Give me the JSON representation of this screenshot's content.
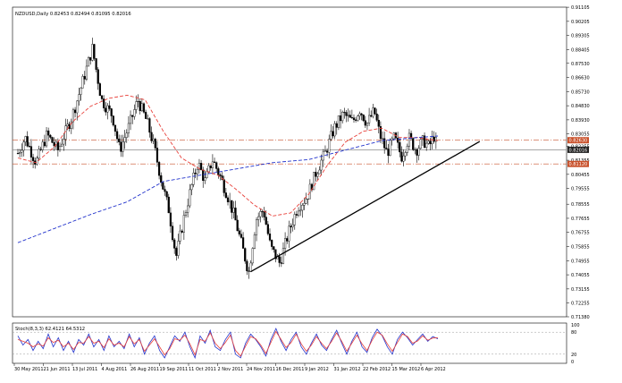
{
  "chart_header": {
    "title": "NZDUSD,Daily  0.82453 0.82494 0.81095 0.82016"
  },
  "chart_data": [
    {
      "type": "candlestick",
      "symbol": "NZDUSD",
      "timeframe": "Daily",
      "ohlc_header": {
        "open": 0.82453,
        "high": 0.82494,
        "low": 0.81095,
        "close": 0.82016
      },
      "ylim": [
        0.7138,
        0.9111
      ],
      "y_ticks": [
        0.91105,
        0.90205,
        0.89305,
        0.88405,
        0.8753,
        0.8663,
        0.8573,
        0.8483,
        0.8393,
        0.83055,
        0.82255,
        0.81355,
        0.80455,
        0.79555,
        0.78555,
        0.77655,
        0.76755,
        0.75855,
        0.74955,
        0.74055,
        0.73155,
        0.72255,
        0.7138
      ],
      "x_ticks": [
        "30 May 2011",
        "21 Jun 2011",
        "13 Jul 2011",
        "4 Aug 2011",
        "26 Aug 2011",
        "19 Sep 2011",
        "11 Oct 2011",
        "2 Nov 2011",
        "24 Nov 2011",
        "16 Dec 2011",
        "9 Jan 2012",
        "31 Jan 2012",
        "22 Feb 2012",
        "15 Mar 2012",
        "6 Apr 2012"
      ],
      "price_path": [
        [
          0,
          0.818
        ],
        [
          8,
          0.828
        ],
        [
          20,
          0.812
        ],
        [
          32,
          0.83
        ],
        [
          44,
          0.82
        ],
        [
          60,
          0.842
        ],
        [
          72,
          0.865
        ],
        [
          82,
          0.885
        ],
        [
          92,
          0.852
        ],
        [
          104,
          0.842
        ],
        [
          112,
          0.82
        ],
        [
          122,
          0.835
        ],
        [
          132,
          0.852
        ],
        [
          142,
          0.838
        ],
        [
          150,
          0.822
        ],
        [
          158,
          0.8
        ],
        [
          166,
          0.782
        ],
        [
          174,
          0.752
        ],
        [
          182,
          0.775
        ],
        [
          190,
          0.795
        ],
        [
          198,
          0.812
        ],
        [
          206,
          0.8
        ],
        [
          214,
          0.814
        ],
        [
          222,
          0.804
        ],
        [
          230,
          0.792
        ],
        [
          238,
          0.778
        ],
        [
          246,
          0.76
        ],
        [
          254,
          0.742
        ],
        [
          262,
          0.776
        ],
        [
          270,
          0.782
        ],
        [
          278,
          0.758
        ],
        [
          288,
          0.748
        ],
        [
          298,
          0.768
        ],
        [
          308,
          0.784
        ],
        [
          318,
          0.79
        ],
        [
          328,
          0.806
        ],
        [
          338,
          0.818
        ],
        [
          348,
          0.834
        ],
        [
          358,
          0.843
        ],
        [
          368,
          0.838
        ],
        [
          376,
          0.846
        ],
        [
          384,
          0.837
        ],
        [
          392,
          0.845
        ],
        [
          398,
          0.83
        ],
        [
          406,
          0.818
        ],
        [
          414,
          0.828
        ],
        [
          422,
          0.816
        ],
        [
          430,
          0.828
        ],
        [
          438,
          0.82
        ],
        [
          446,
          0.826
        ],
        [
          452,
          0.822
        ],
        [
          458,
          0.829
        ],
        [
          462,
          0.82
        ]
      ],
      "moving_averages": [
        {
          "color": "#e8403a",
          "style": "dashed",
          "values": [
            [
              0,
              0.815
            ],
            [
              20,
              0.812
            ],
            [
              40,
              0.822
            ],
            [
              60,
              0.838
            ],
            [
              80,
              0.848
            ],
            [
              100,
              0.853
            ],
            [
              120,
              0.855
            ],
            [
              140,
              0.852
            ],
            [
              160,
              0.832
            ],
            [
              180,
              0.815
            ],
            [
              200,
              0.808
            ],
            [
              220,
              0.804
            ],
            [
              240,
              0.795
            ],
            [
              260,
              0.785
            ],
            [
              280,
              0.778
            ],
            [
              300,
              0.78
            ],
            [
              320,
              0.792
            ],
            [
              340,
              0.81
            ],
            [
              360,
              0.825
            ],
            [
              380,
              0.832
            ],
            [
              400,
              0.834
            ],
            [
              420,
              0.828
            ],
            [
              440,
              0.828
            ],
            [
              462,
              0.826
            ]
          ]
        },
        {
          "color": "#2233cc",
          "style": "dashed",
          "values": [
            [
              0,
              0.761
            ],
            [
              40,
              0.77
            ],
            [
              80,
              0.779
            ],
            [
              120,
              0.787
            ],
            [
              160,
              0.8
            ],
            [
              200,
              0.804
            ],
            [
              240,
              0.808
            ],
            [
              280,
              0.812
            ],
            [
              320,
              0.814
            ],
            [
              360,
              0.82
            ],
            [
              400,
              0.826
            ],
            [
              440,
              0.828
            ],
            [
              462,
              0.829
            ]
          ]
        }
      ],
      "horizontal_levels": [
        {
          "value": 0.8263,
          "color": "#c8502a",
          "style": "dash-dot",
          "label": "0.82630"
        },
        {
          "value": 0.8202,
          "color": "#888888",
          "style": "solid",
          "label": "0.82016"
        },
        {
          "value": 0.8112,
          "color": "#c8502a",
          "style": "dash-dot",
          "label": "0.81120"
        }
      ],
      "trendline": {
        "color": "#000000",
        "from": [
          256,
          0.7425
        ],
        "to": [
          508,
          0.8255
        ]
      }
    },
    {
      "type": "line",
      "title": "Stoch(8,3,3) 62.4121 64.5312",
      "ylim": [
        0,
        100
      ],
      "y_ticks": [
        100,
        80,
        20,
        0
      ],
      "levels": [
        80,
        20
      ],
      "series": [
        {
          "color": "#2233cc",
          "values": [
            70,
            45,
            60,
            30,
            55,
            35,
            75,
            40,
            65,
            30,
            55,
            25,
            60,
            45,
            75,
            40,
            60,
            30,
            70,
            40,
            55,
            35,
            75,
            40,
            65,
            20,
            50,
            70,
            30,
            10,
            40,
            70,
            55,
            80,
            40,
            10,
            70,
            50,
            85,
            40,
            30,
            60,
            80,
            20,
            10,
            50,
            75,
            60,
            40,
            15,
            60,
            90,
            55,
            30,
            60,
            80,
            40,
            20,
            50,
            75,
            45,
            30,
            60,
            85,
            50,
            20,
            55,
            80,
            40,
            25,
            65,
            88,
            70,
            40,
            20,
            60,
            80,
            65,
            45,
            60,
            75,
            55,
            68,
            62
          ]
        },
        {
          "color": "#e8403a",
          "values": [
            60,
            55,
            50,
            40,
            48,
            42,
            65,
            52,
            58,
            40,
            50,
            33,
            52,
            50,
            68,
            50,
            55,
            38,
            62,
            45,
            50,
            40,
            68,
            48,
            60,
            28,
            45,
            62,
            40,
            18,
            35,
            62,
            58,
            72,
            48,
            18,
            60,
            55,
            78,
            50,
            35,
            52,
            72,
            30,
            15,
            42,
            68,
            62,
            45,
            22,
            52,
            82,
            60,
            38,
            52,
            75,
            48,
            28,
            45,
            68,
            50,
            35,
            55,
            78,
            55,
            28,
            50,
            72,
            48,
            30,
            58,
            80,
            72,
            48,
            28,
            52,
            75,
            68,
            50,
            56,
            70,
            58,
            64,
            65
          ]
        }
      ]
    }
  ]
}
